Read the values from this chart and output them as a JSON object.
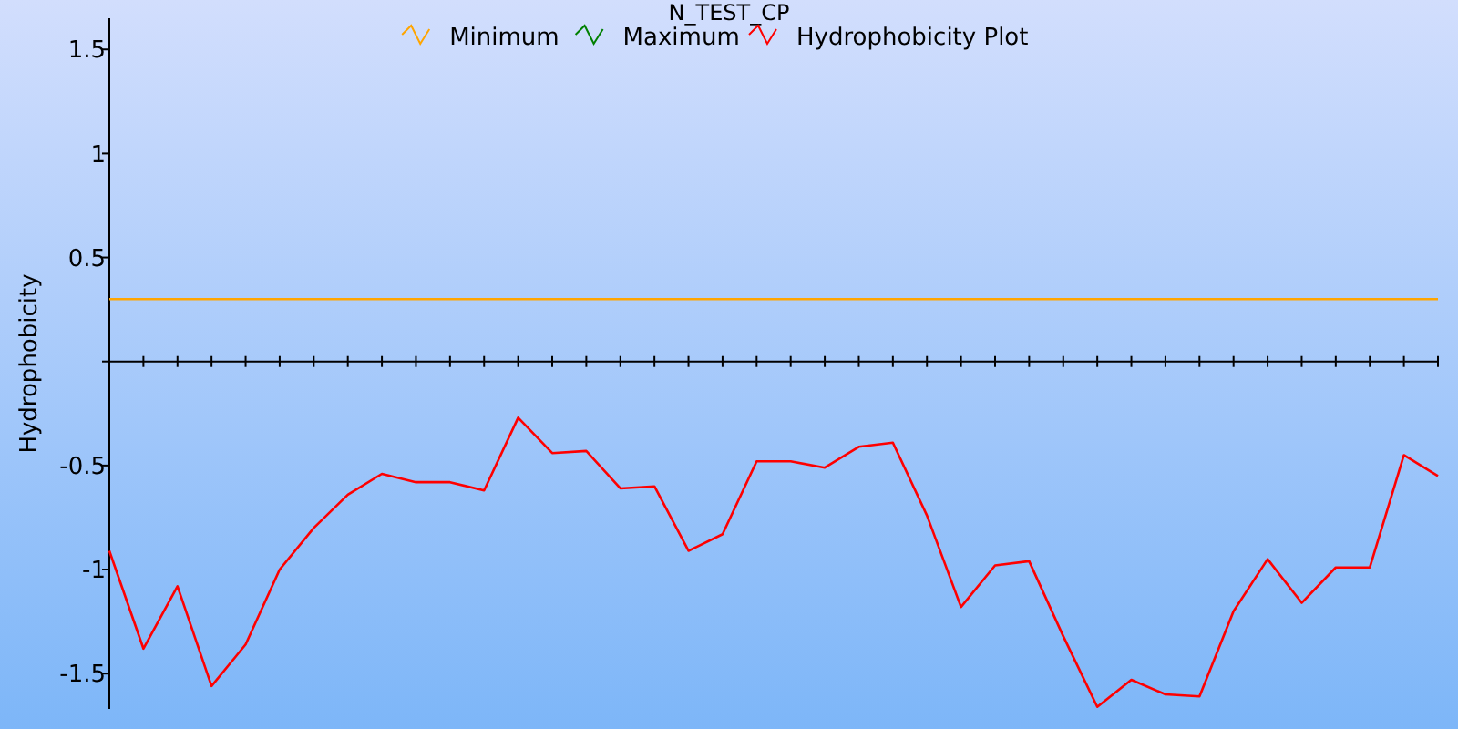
{
  "chart_data": {
    "type": "line",
    "title": "N_TEST_CP",
    "ylabel": "Hydrophobicity",
    "categories": [
      null,
      null,
      null,
      null,
      null,
      null,
      null,
      null,
      null,
      null,
      null,
      null,
      null,
      null,
      null,
      null,
      null,
      null,
      null,
      null,
      null,
      null,
      null,
      null,
      null,
      null,
      null,
      null,
      null,
      null,
      null,
      null,
      null,
      null,
      null,
      null,
      null,
      null,
      null,
      null
    ],
    "series": [
      {
        "name": "Minimum",
        "color": "#ffa500",
        "values": [
          0.3,
          0.3,
          0.3,
          0.3,
          0.3,
          0.3,
          0.3,
          0.3,
          0.3,
          0.3,
          0.3,
          0.3,
          0.3,
          0.3,
          0.3,
          0.3,
          0.3,
          0.3,
          0.3,
          0.3,
          0.3,
          0.3,
          0.3,
          0.3,
          0.3,
          0.3,
          0.3,
          0.3,
          0.3,
          0.3,
          0.3,
          0.3,
          0.3,
          0.3,
          0.3,
          0.3,
          0.3,
          0.3,
          0.3,
          0.3
        ]
      },
      {
        "name": "Maximum",
        "color": "#008000",
        "values": [
          null,
          null,
          null,
          null,
          null,
          null,
          null,
          null,
          null,
          null,
          null,
          null,
          null,
          null,
          null,
          null,
          null,
          null,
          null,
          null,
          null,
          null,
          null,
          null,
          null,
          null,
          null,
          null,
          null,
          null,
          null,
          null,
          null,
          null,
          null,
          null,
          null,
          null,
          null,
          null
        ]
      },
      {
        "name": "Hydrophobicity Plot",
        "color": "#ff0000",
        "values": [
          -0.91,
          -1.38,
          -1.08,
          -1.56,
          -1.36,
          -1.0,
          -0.8,
          -0.64,
          -0.54,
          -0.58,
          -0.58,
          -0.62,
          -0.27,
          -0.44,
          -0.43,
          -0.61,
          -0.6,
          -0.91,
          -0.83,
          -0.48,
          -0.48,
          -0.51,
          -0.41,
          -0.39,
          -0.74,
          -1.18,
          -0.98,
          -0.96,
          -1.32,
          -1.66,
          -1.53,
          -1.6,
          -1.61,
          -1.2,
          -0.95,
          -1.16,
          -0.99,
          -0.99,
          -0.45,
          -0.55
        ]
      }
    ],
    "ylim": [
      -1.67,
      1.65
    ],
    "yticks": [
      1.5,
      1,
      0.5,
      {
        "value": 0,
        "label": null
      },
      -0.5,
      -1,
      -1.5
    ],
    "tick_labels": "y",
    "legend": "top",
    "marker": "none",
    "line_style": "solid"
  }
}
